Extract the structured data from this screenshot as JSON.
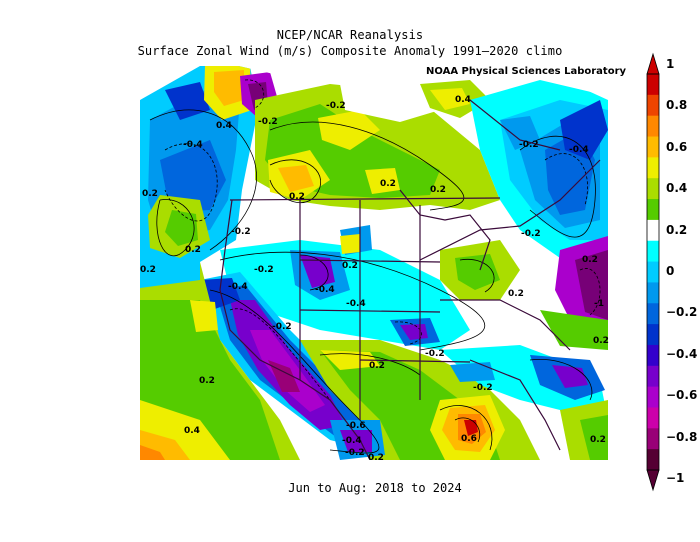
{
  "title": "NCEP/NCAR Reanalysis",
  "subtitle": "Surface Zonal Wind (m/s) Composite Anomaly 1991–2020 climo",
  "credit": "NOAA Physical Sciences Laboratory",
  "period": "Jun to Aug: 2018 to 2024",
  "colorbar": {
    "ticks": [
      "1",
      "0.8",
      "0.6",
      "0.4",
      "0.2",
      "0",
      "−0.2",
      "−0.4",
      "−0.6",
      "−0.8",
      "−1"
    ],
    "colors": [
      "#cc0000",
      "#ee4400",
      "#ff8800",
      "#ffbb00",
      "#eeee00",
      "#aadd00",
      "#55cc00",
      "#ffffff",
      "#00ffff",
      "#00ccff",
      "#0099ee",
      "#0066dd",
      "#0033cc",
      "#3300cc",
      "#7700cc",
      "#aa00cc",
      "#cc00aa",
      "#990077",
      "#550033"
    ]
  },
  "contour_labels": [
    "0.4",
    "-0.2",
    "-0.4",
    "0.2",
    "-0.2",
    "0.2",
    "0.2",
    "0.2",
    "0.2",
    "0.4",
    "-0.2",
    "-0.4",
    "0.2",
    "-0.2",
    "-0.4",
    "-0.2",
    "0.2",
    "-0.4",
    "-0.2",
    "-0.4",
    "-0.2",
    "-0.2",
    "0.2",
    "0.2",
    "-0.2",
    "0.2",
    "0.4",
    "-0.6",
    "-0.4",
    "-0.2",
    "0.2",
    "0.6",
    "0.2",
    "-1",
    "0.2",
    "0.2"
  ]
}
